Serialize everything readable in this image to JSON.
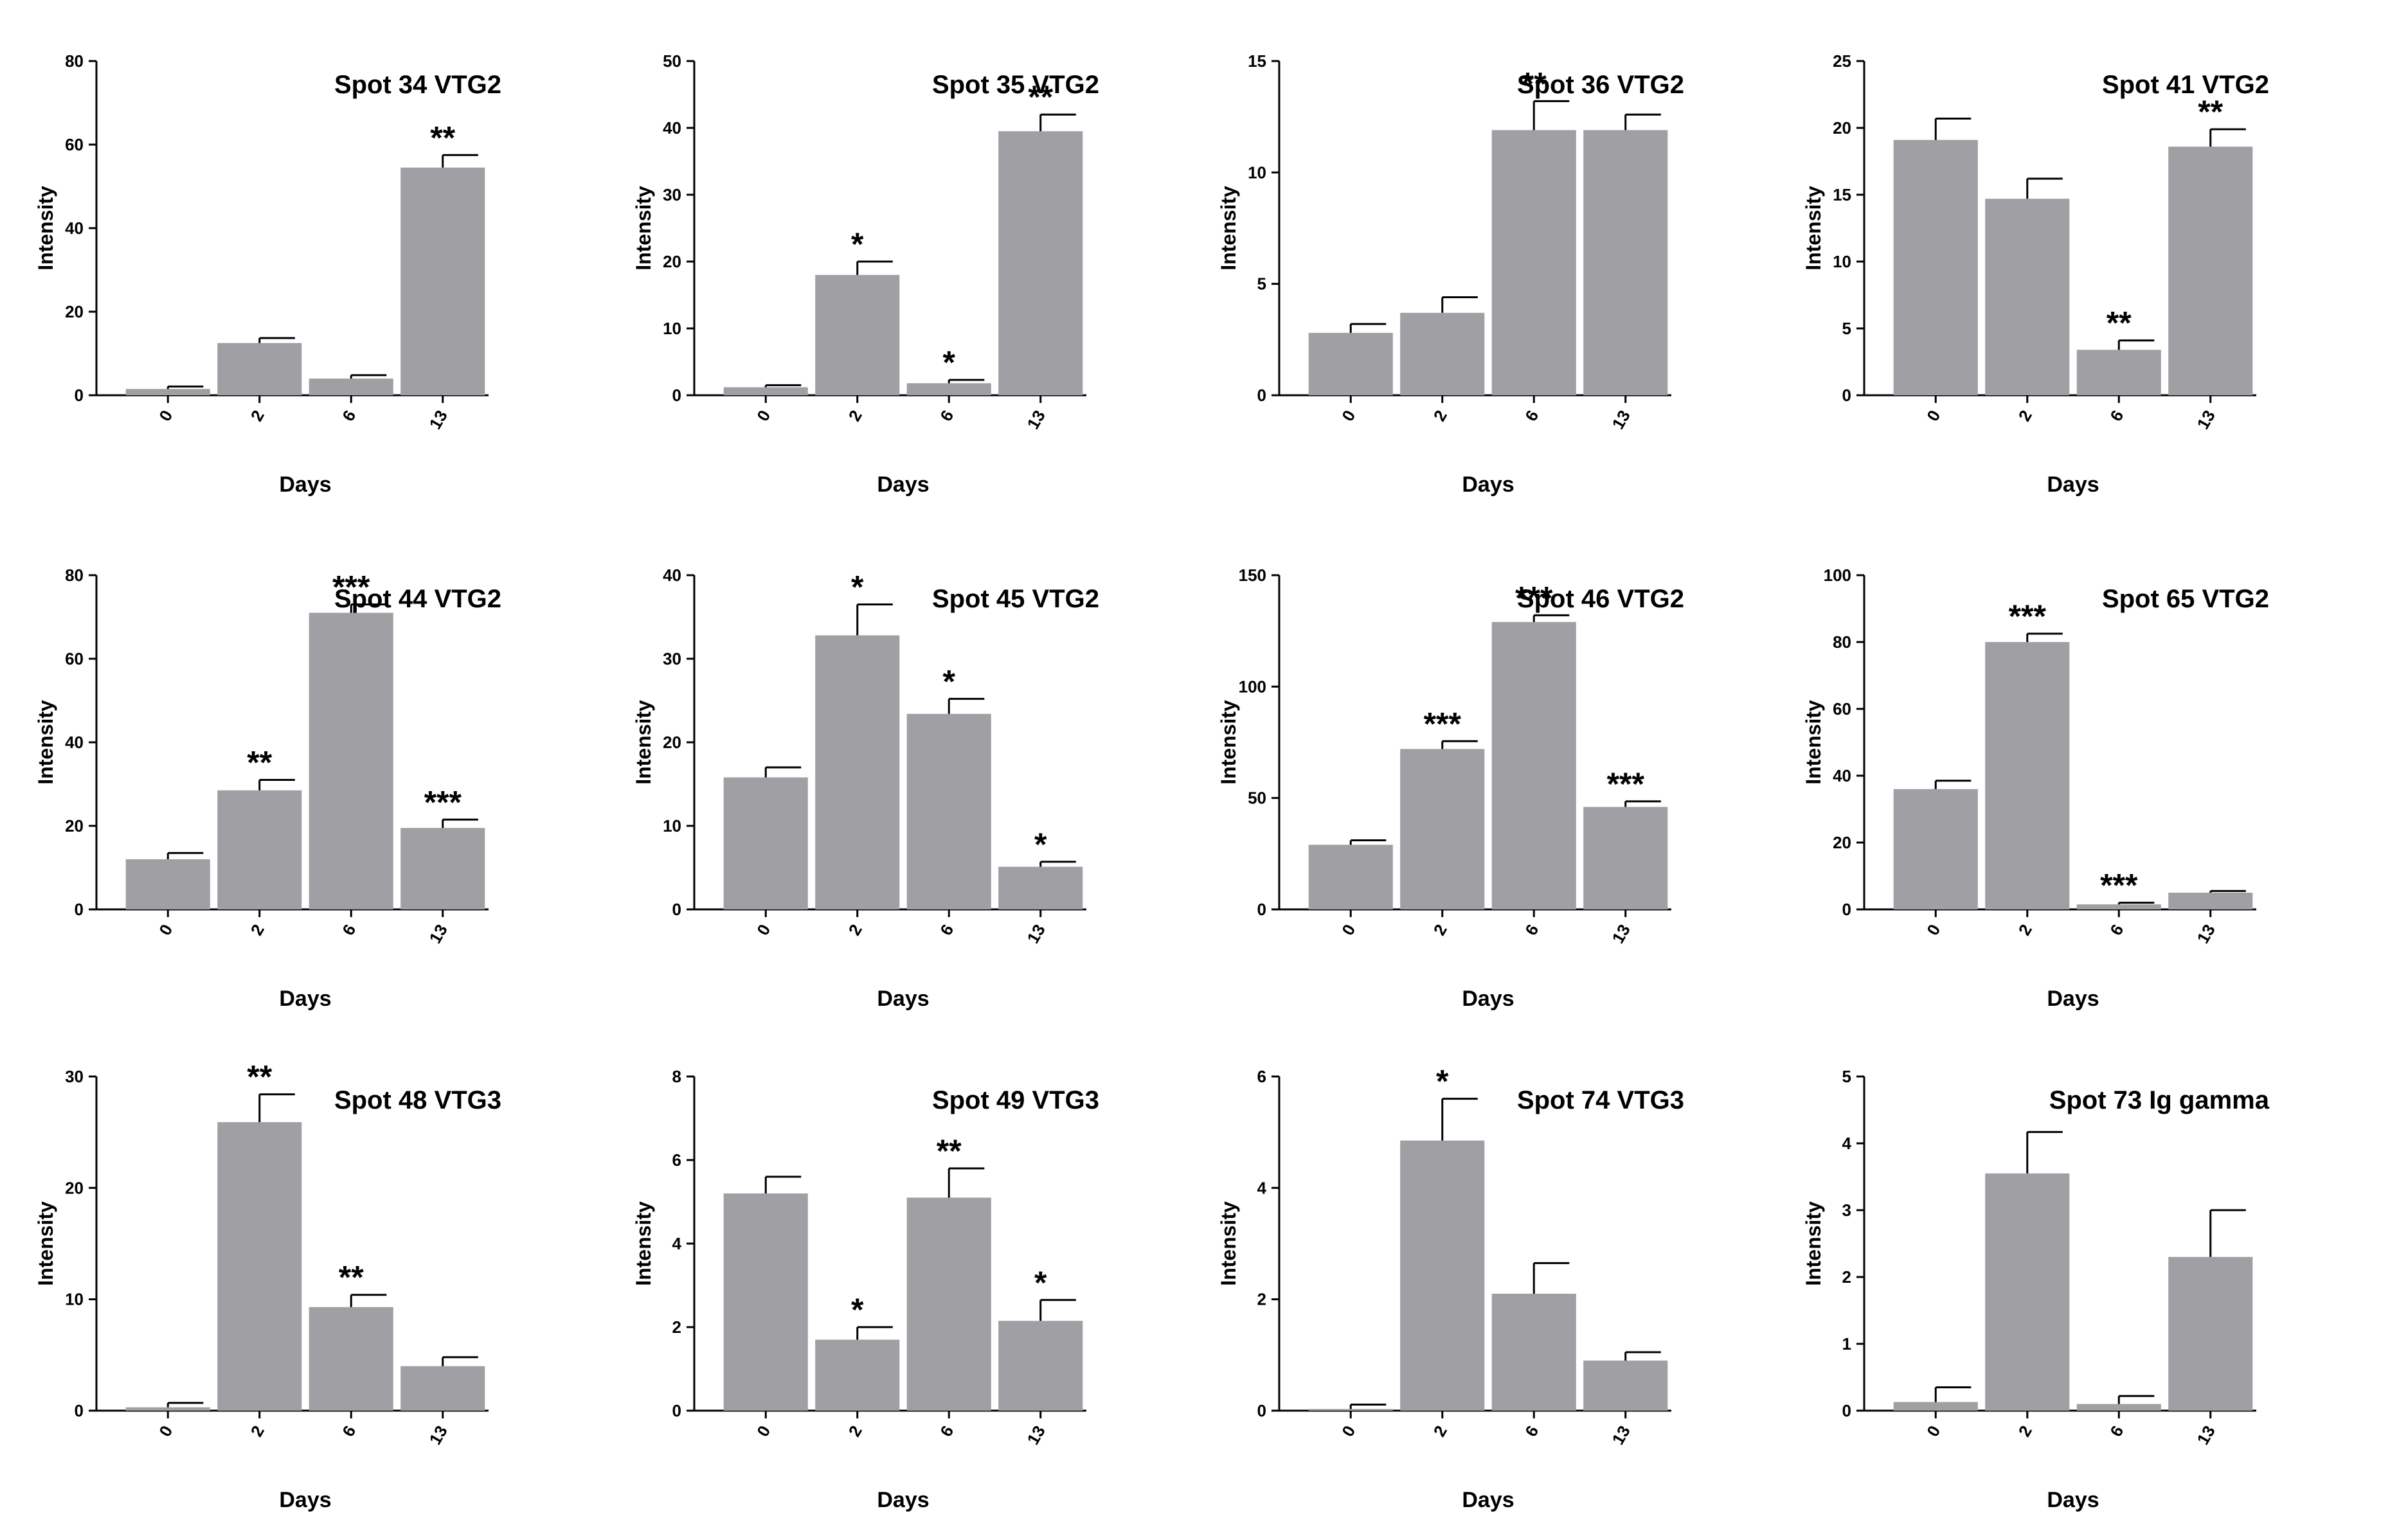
{
  "colors": {
    "bar": "#a0a0a4",
    "axis": "#000000",
    "text": "#000000"
  },
  "chart_data": [
    {
      "type": "bar",
      "title": "Spot 34 VTG2",
      "xlabel": "Days",
      "ylabel": "Intensity",
      "categories": [
        "0",
        "2",
        "6",
        "13"
      ],
      "values": [
        1.5,
        12.5,
        4,
        54.5
      ],
      "errors": [
        0.6,
        1.2,
        0.8,
        3
      ],
      "significance": [
        "",
        "",
        "",
        "**"
      ],
      "ylim": [
        0,
        80
      ],
      "yticks": [
        0,
        20,
        40,
        60,
        80
      ]
    },
    {
      "type": "bar",
      "title": "Spot 35 VTG2",
      "xlabel": "Days",
      "ylabel": "Intensity",
      "categories": [
        "0",
        "2",
        "6",
        "13"
      ],
      "values": [
        1.2,
        18,
        1.8,
        39.5
      ],
      "errors": [
        0.3,
        2,
        0.5,
        2.5
      ],
      "significance": [
        "",
        "*",
        "*",
        "**"
      ],
      "ylim": [
        0,
        50
      ],
      "yticks": [
        0,
        10,
        20,
        30,
        40,
        50
      ]
    },
    {
      "type": "bar",
      "title": "Spot 36 VTG2",
      "xlabel": "Days",
      "ylabel": "Intensity",
      "categories": [
        "0",
        "2",
        "6",
        "13"
      ],
      "values": [
        2.8,
        3.7,
        11.9,
        11.9
      ],
      "errors": [
        0.4,
        0.7,
        1.3,
        0.7
      ],
      "significance": [
        "",
        "",
        "**",
        ""
      ],
      "ylim": [
        0,
        15
      ],
      "yticks": [
        0,
        5,
        10,
        15
      ]
    },
    {
      "type": "bar",
      "title": "Spot 41 VTG2",
      "xlabel": "Days",
      "ylabel": "Intensity",
      "categories": [
        "0",
        "2",
        "6",
        "13"
      ],
      "values": [
        19.1,
        14.7,
        3.4,
        18.6
      ],
      "errors": [
        1.6,
        1.5,
        0.7,
        1.3
      ],
      "significance": [
        "",
        "",
        "**",
        "**"
      ],
      "ylim": [
        0,
        25
      ],
      "yticks": [
        0,
        5,
        10,
        15,
        20,
        25
      ]
    },
    {
      "type": "bar",
      "title": "Spot 44 VTG2",
      "xlabel": "Days",
      "ylabel": "Intensity",
      "categories": [
        "0",
        "2",
        "6",
        "13"
      ],
      "values": [
        12,
        28.5,
        71,
        19.5
      ],
      "errors": [
        1.5,
        2.5,
        2,
        2
      ],
      "significance": [
        "",
        "**",
        "***",
        "***"
      ],
      "ylim": [
        0,
        80
      ],
      "yticks": [
        0,
        20,
        40,
        60,
        80
      ]
    },
    {
      "type": "bar",
      "title": "Spot 45 VTG2",
      "xlabel": "Days",
      "ylabel": "Intensity",
      "categories": [
        "0",
        "2",
        "6",
        "13"
      ],
      "values": [
        15.8,
        32.8,
        23.4,
        5.1
      ],
      "errors": [
        1.2,
        3.7,
        1.8,
        0.6
      ],
      "significance": [
        "",
        "*",
        "*",
        "*"
      ],
      "ylim": [
        0,
        40
      ],
      "yticks": [
        0,
        10,
        20,
        30,
        40
      ]
    },
    {
      "type": "bar",
      "title": "Spot 46 VTG2",
      "xlabel": "Days",
      "ylabel": "Intensity",
      "categories": [
        "0",
        "2",
        "6",
        "13"
      ],
      "values": [
        29,
        72,
        129,
        46
      ],
      "errors": [
        2,
        3.5,
        3,
        2.5
      ],
      "significance": [
        "",
        "***",
        "***",
        "***"
      ],
      "ylim": [
        0,
        150
      ],
      "yticks": [
        0,
        50,
        100,
        150
      ]
    },
    {
      "type": "bar",
      "title": "Spot 65 VTG2",
      "xlabel": "Days",
      "ylabel": "Intensity",
      "categories": [
        "0",
        "2",
        "6",
        "13"
      ],
      "values": [
        36,
        80,
        1.5,
        5
      ],
      "errors": [
        2.5,
        2.5,
        0.5,
        0.5
      ],
      "significance": [
        "",
        "***",
        "***",
        ""
      ],
      "ylim": [
        0,
        100
      ],
      "yticks": [
        0,
        20,
        40,
        60,
        80,
        100
      ]
    },
    {
      "type": "bar",
      "title": "Spot 48 VTG3",
      "xlabel": "Days",
      "ylabel": "Intensity",
      "categories": [
        "0",
        "2",
        "6",
        "13"
      ],
      "values": [
        0.3,
        25.9,
        9.3,
        4
      ],
      "errors": [
        0.4,
        2.5,
        1.1,
        0.8
      ],
      "significance": [
        "",
        "**",
        "**",
        ""
      ],
      "ylim": [
        0,
        30
      ],
      "yticks": [
        0,
        10,
        20,
        30
      ]
    },
    {
      "type": "bar",
      "title": "Spot 49 VTG3",
      "xlabel": "Days",
      "ylabel": "Intensity",
      "categories": [
        "0",
        "2",
        "6",
        "13"
      ],
      "values": [
        5.2,
        1.7,
        5.1,
        2.15
      ],
      "errors": [
        0.4,
        0.3,
        0.7,
        0.5
      ],
      "significance": [
        "",
        "*",
        "**",
        "*"
      ],
      "ylim": [
        0,
        8
      ],
      "yticks": [
        0,
        2,
        4,
        6,
        8
      ]
    },
    {
      "type": "bar",
      "title": "Spot 74 VTG3",
      "xlabel": "Days",
      "ylabel": "Intensity",
      "categories": [
        "0",
        "2",
        "6",
        "13"
      ],
      "values": [
        0.03,
        4.85,
        2.1,
        0.9
      ],
      "errors": [
        0.08,
        0.75,
        0.55,
        0.15
      ],
      "significance": [
        "",
        "*",
        "",
        ""
      ],
      "ylim": [
        0,
        6
      ],
      "yticks": [
        0,
        2,
        4,
        6
      ]
    },
    {
      "type": "bar",
      "title": "Spot 73 Ig gamma",
      "xlabel": "Days",
      "ylabel": "Intensity",
      "categories": [
        "0",
        "2",
        "6",
        "13"
      ],
      "values": [
        0.13,
        3.55,
        0.1,
        2.3
      ],
      "errors": [
        0.22,
        0.62,
        0.12,
        0.7
      ],
      "significance": [
        "",
        "",
        "",
        ""
      ],
      "ylim": [
        0,
        5
      ],
      "yticks": [
        0,
        1,
        2,
        3,
        4,
        5
      ]
    }
  ]
}
